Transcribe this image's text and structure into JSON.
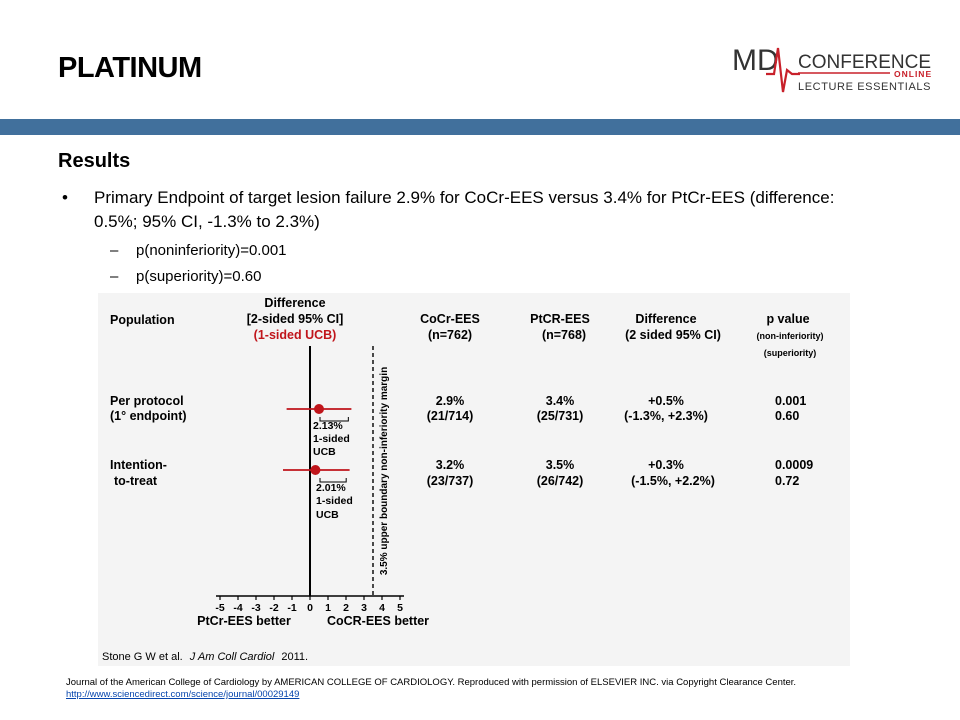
{
  "slide": {
    "title": "PLATINUM",
    "logo": {
      "md": "MD",
      "conference": "CONFERENCE",
      "online": "ONLINE",
      "tagline": "LECTURE ESSENTIALS",
      "icon": "heartbeat-icon",
      "accent_color": "#c8202a"
    },
    "band_color": "#41709c",
    "section": "Results",
    "bullet": "Primary Endpoint of target lesion failure 2.9% for CoCr-EES versus 3.4% for PtCr-EES (difference: 0.5%; 95% CI, -1.3% to 2.3%)",
    "sub_bullets": [
      "p(noninferiority)=0.001",
      "p(superiority)=0.60"
    ],
    "footer": {
      "note": "Journal of the American College of Cardiology by AMERICAN COLLEGE OF CARDIOLOGY. Reproduced with permission of ELSEVIER INC. via Copyright Clearance Center.",
      "link": "http://www.sciencedirect.com/science/journal/00029149"
    }
  },
  "figure": {
    "headers": {
      "population": "Population",
      "difference": [
        "Difference",
        "[2-sided 95% CI]",
        "(1-sided UCB)"
      ],
      "cocr": [
        "CoCr-EES",
        "(n=762)"
      ],
      "ptcr": [
        "PtCR-EES",
        "(n=768)"
      ],
      "diff_col": [
        "Difference",
        "(2 sided 95% CI)"
      ],
      "pvalue": [
        "p value",
        "(non-inferiority)",
        "(superiority)"
      ]
    },
    "ucb_color": "#c0151b",
    "margin_label": "3.5% upper boundary non-inferiority margin",
    "rows": [
      {
        "population": [
          "Per protocol",
          "(1° endpoint)"
        ],
        "ucb": [
          "2.13%",
          "1-sided",
          "UCB"
        ],
        "cocr": [
          "2.9%",
          "(21/714)"
        ],
        "ptcr": [
          "3.4%",
          "(25/731)"
        ],
        "diff": [
          "+0.5%",
          "(-1.3%, +2.3%)"
        ],
        "p": [
          "0.001",
          "0.60"
        ]
      },
      {
        "population": [
          "Intention-",
          "to-treat"
        ],
        "ucb": [
          "2.01%",
          "1-sided",
          "UCB"
        ],
        "cocr": [
          "3.2%",
          "(23/737)"
        ],
        "ptcr": [
          "3.5%",
          "(26/742)"
        ],
        "diff": [
          "+0.3%",
          "(-1.5%, +2.2%)"
        ],
        "p": [
          "0.0009",
          "0.72"
        ]
      }
    ],
    "x_ticks": [
      "-5",
      "-4",
      "-3",
      "-2",
      "-1",
      "0",
      "1",
      "2",
      "3",
      "4",
      "5"
    ],
    "x_label_left": "PtCr-EES better",
    "x_label_right": "CoCR-EES better",
    "citation_authors": "Stone G W et al.",
    "citation_journal": "J Am Coll Cardiol",
    "citation_year": "2011."
  },
  "chart_data": {
    "type": "forest",
    "x": [
      0.5,
      0.3
    ],
    "ci": [
      [
        -1.3,
        2.3
      ],
      [
        -1.5,
        2.2
      ]
    ],
    "ucb": [
      2.13,
      2.01
    ],
    "xlim": [
      -5,
      5
    ],
    "reference_line": 0,
    "margin": 3.5
  }
}
